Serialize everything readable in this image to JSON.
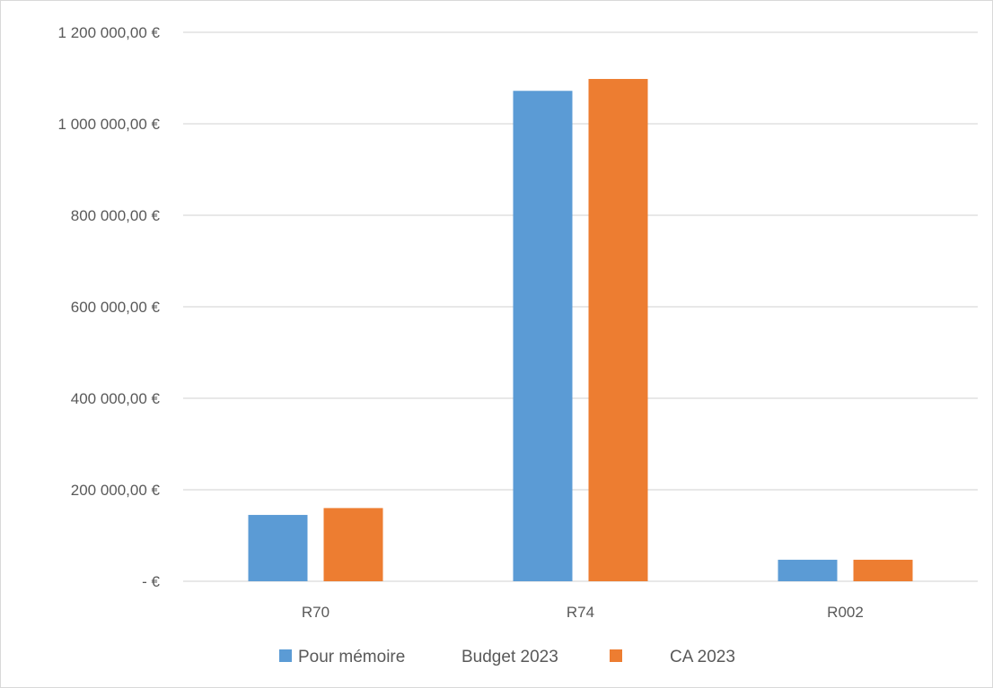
{
  "chart_data": {
    "type": "bar",
    "categories": [
      "R70",
      "R74",
      "R002"
    ],
    "series": [
      {
        "name": "Pour mémoire",
        "values": [
          145000,
          1072000,
          47000
        ],
        "color": "#5b9bd5"
      },
      {
        "name": "CA 2023",
        "values": [
          160000,
          1098000,
          47000
        ],
        "color": "#ed7d31"
      }
    ],
    "legend_extra_text": "Budget 2023",
    "y_ticks": [
      0,
      200000,
      400000,
      600000,
      800000,
      1000000,
      1200000
    ],
    "y_tick_labels": [
      "-   €",
      "200 000,00 €",
      "400 000,00 €",
      "600 000,00 €",
      "800 000,00 €",
      "1 000 000,00 €",
      "1 200 000,00 €"
    ],
    "ylim": [
      0,
      1200000
    ],
    "grid": true,
    "gridline_color": "#d9d9d9",
    "legend_position": "bottom"
  }
}
